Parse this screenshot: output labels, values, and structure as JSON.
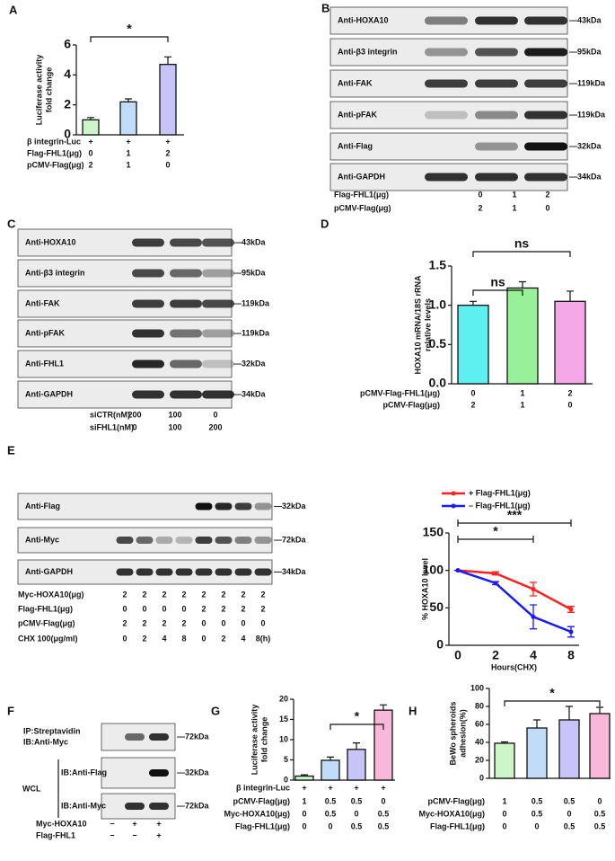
{
  "panel_labels": [
    "A",
    "B",
    "C",
    "D",
    "E",
    "F",
    "G",
    "H"
  ],
  "chart_data": [
    {
      "type": "bar",
      "ylabel": [
        "Luciferase activity",
        "fold change"
      ],
      "categories": [
        null,
        null,
        null
      ],
      "values": [
        1.0,
        2.2,
        4.7
      ],
      "errors": [
        0.15,
        0.2,
        0.5
      ],
      "colors": [
        "#ccf5c8",
        "#c0dcf8",
        "#c8c4f8"
      ],
      "ylim": [
        0,
        6
      ],
      "yticks": [
        0,
        2,
        4,
        6
      ],
      "annotations": [
        "*"
      ],
      "conditions": [
        {
          "label": "β integrin-Luc",
          "cells": [
            "+",
            "+",
            "+"
          ]
        },
        {
          "label": "Flag-FHL1(μg)",
          "cells": [
            "0",
            "1",
            "2"
          ]
        },
        {
          "label": "pCMV-Flag(μg)",
          "cells": [
            "2",
            "1",
            "0"
          ]
        }
      ]
    },
    {
      "type": "bar",
      "ylabel": [
        "HOXA10 mRNA/18S rRNA",
        "relative levels"
      ],
      "categories": [
        null,
        null,
        null
      ],
      "values": [
        1.0,
        1.22,
        1.05
      ],
      "errors": [
        0.05,
        0.08,
        0.13
      ],
      "colors": [
        "#5ef0f0",
        "#98f098",
        "#f4a8e8"
      ],
      "ylim": [
        0,
        1.5
      ],
      "yticks": [
        {
          "value": 0,
          "label": "0.0"
        },
        0.5,
        {
          "value": 1,
          "label": "1.0"
        },
        1.5
      ],
      "annotations": [
        "ns",
        "ns"
      ],
      "conditions": [
        {
          "label": "pCMV-Flag-FHL1(μg)",
          "cells": [
            "0",
            "1",
            "2"
          ]
        },
        {
          "label": "pCMV-Flag(μg)",
          "cells": [
            "2",
            "1",
            "0"
          ]
        }
      ]
    },
    {
      "type": "line",
      "ylabel": "% HOXA10 level",
      "xlabel": "Hours(CHX)",
      "categories": [
        "0",
        "2",
        "4",
        "8"
      ],
      "series": [
        {
          "name": "+ Flag-FHL1(μg)",
          "color": "#ff2020",
          "values": [
            100,
            96,
            75,
            48
          ],
          "errors": [
            0,
            2,
            9,
            4
          ]
        },
        {
          "name": "– Flag-FHL1(μg)",
          "color": "#1a1aff",
          "values": [
            100,
            83,
            38,
            18
          ],
          "errors": [
            0,
            2,
            16,
            7
          ]
        }
      ],
      "ylim": [
        0,
        150
      ],
      "yticks": [
        0,
        50,
        100,
        150
      ],
      "annotations": [
        "*",
        "***"
      ]
    },
    {
      "type": "bar",
      "ylabel": [
        "Luciferase activity",
        "fold change"
      ],
      "categories": [
        null,
        null,
        null,
        null
      ],
      "values": [
        1.0,
        4.9,
        7.6,
        17.3
      ],
      "errors": [
        0.3,
        0.8,
        1.6,
        1.3
      ],
      "colors": [
        "#ccf5c8",
        "#c0dcf8",
        "#c8c4f8",
        "#f8b8d8"
      ],
      "ylim": [
        0,
        20
      ],
      "yticks": [
        0,
        5,
        10,
        15,
        20
      ],
      "annotations": [
        "*"
      ],
      "conditions": [
        {
          "label": "β integrin-Luc",
          "cells": [
            "+",
            "+",
            "+",
            "+"
          ]
        },
        {
          "label": "pCMV-Flag(μg)",
          "cells": [
            "1",
            "0.5",
            "0.5",
            "0"
          ]
        },
        {
          "label": "Myc-HOXA10(μg)",
          "cells": [
            "0",
            "0.5",
            "0",
            "0.5"
          ]
        },
        {
          "label": "Flag-FHL1(μg)",
          "cells": [
            "0",
            "0",
            "0.5",
            "0.5"
          ]
        }
      ]
    },
    {
      "type": "bar",
      "ylabel": [
        "BeWo spheroids",
        "adhesion(%)"
      ],
      "categories": [
        null,
        null,
        null,
        null
      ],
      "values": [
        39,
        56,
        65,
        72
      ],
      "errors": [
        1.5,
        9,
        15,
        7
      ],
      "colors": [
        "#ccf5c8",
        "#c0dcf8",
        "#c8c4f8",
        "#f8b8d8"
      ],
      "ylim": [
        0,
        100
      ],
      "yticks": [
        0,
        20,
        40,
        60,
        80,
        100
      ],
      "annotations": [
        "*"
      ],
      "conditions": [
        {
          "label": "pCMV-Flag(μg)",
          "cells": [
            "1",
            "0.5",
            "0.5",
            "0"
          ]
        },
        {
          "label": "Myc-HOXA10(μg)",
          "cells": [
            "0",
            "0.5",
            "0",
            "0.5"
          ]
        },
        {
          "label": "Flag-FHL1(μg)",
          "cells": [
            "0",
            "0",
            "0.5",
            "0.5"
          ]
        }
      ]
    }
  ],
  "blots": [
    {
      "rows": [
        {
          "label": "Anti-HOXA10",
          "size": "—43kDa"
        },
        {
          "label": "Anti-β3 integrin",
          "size": "—95kDa"
        },
        {
          "label": "Anti-FAK",
          "size": "—119kDa"
        },
        {
          "label": "Anti-pFAK",
          "size": "—119kDa"
        },
        {
          "label": "Anti-Flag",
          "size": "—32kDa"
        },
        {
          "label": "Anti-GAPDH",
          "size": "—34kDa"
        }
      ],
      "conditions": [
        {
          "label": "Flag-FHL1(μg)",
          "cells": [
            "0",
            "1",
            "2"
          ]
        },
        {
          "label": "pCMV-Flag(μg)",
          "cells": [
            "2",
            "1",
            "0"
          ]
        }
      ]
    },
    {
      "rows": [
        {
          "label": "Anti-HOXA10",
          "size": "—43kDa"
        },
        {
          "label": "Anti-β3 integrin",
          "size": "—95kDa"
        },
        {
          "label": "Anti-FAK",
          "size": "—119kDa"
        },
        {
          "label": "Anti-pFAK",
          "size": "—119kDa"
        },
        {
          "label": "Anti-FHL1",
          "size": "—32kDa"
        },
        {
          "label": "Anti-GAPDH",
          "size": "—34kDa"
        }
      ],
      "conditions": [
        {
          "label": "siCTR(nM)",
          "cells": [
            "200",
            "100",
            "0"
          ]
        },
        {
          "label": "siFHL1(nM)",
          "cells": [
            "0",
            "100",
            "200"
          ]
        }
      ]
    },
    {
      "rows": [
        {
          "label": "Anti-Flag",
          "size": "—32kDa"
        },
        {
          "label": "Anti-Myc",
          "size": "—72kDa"
        },
        {
          "label": "Anti-GAPDH",
          "size": "—34kDa"
        }
      ],
      "conditions": [
        {
          "label": "Myc-HOXA10(μg)",
          "cells": [
            "2",
            "2",
            "2",
            "2",
            "2",
            "2",
            "2",
            "2"
          ]
        },
        {
          "label": "Flag-FHL1(μg)",
          "cells": [
            "0",
            "0",
            "0",
            "0",
            "2",
            "2",
            "2",
            "2"
          ]
        },
        {
          "label": "pCMV-Flag(μg)",
          "cells": [
            "2",
            "2",
            "2",
            "2",
            "0",
            "0",
            "0",
            "0"
          ]
        },
        {
          "label": "CHX 100(μg/ml)",
          "cells": [
            "0",
            "2",
            "4",
            "8",
            "0",
            "2",
            "4",
            "8(h)"
          ]
        }
      ]
    },
    {
      "rows": [
        {
          "label": [
            "IP:Streptavidin",
            "IB:Anti-Myc"
          ],
          "size": "—72kDa"
        },
        {
          "label": "IB:Anti-Flag",
          "size": "—32kDa"
        },
        {
          "label": "IB:Anti-Myc",
          "size": "—72kDa"
        }
      ],
      "group_label": "WCL",
      "conditions": [
        {
          "label": "Myc-HOXA10",
          "cells": [
            "−",
            "+",
            "+"
          ]
        },
        {
          "label": "Flag-FHL1",
          "cells": [
            "−",
            "−",
            "+"
          ]
        }
      ]
    }
  ]
}
